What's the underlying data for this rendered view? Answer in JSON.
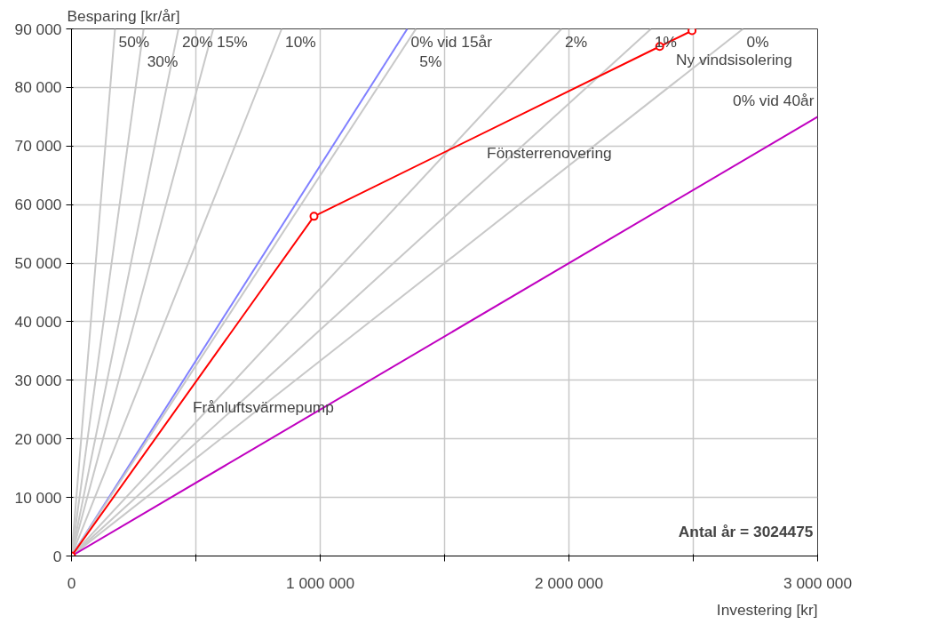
{
  "chart_data": {
    "type": "line",
    "xlabel": "Investering [kr]",
    "ylabel": "Besparing [kr/år]",
    "xlim": [
      0,
      3000000
    ],
    "ylim": [
      0,
      90000
    ],
    "xticks": [
      0,
      {
        "value": 500000,
        "label": null
      },
      {
        "value": 1000000,
        "label": "1 000 000"
      },
      {
        "value": 1500000,
        "label": null
      },
      {
        "value": 2000000,
        "label": "2 000 000"
      },
      {
        "value": 2500000,
        "label": null
      },
      {
        "value": 3000000,
        "label": "3 000 000"
      }
    ],
    "yticks": [
      0,
      {
        "value": 10000,
        "label": "10 000"
      },
      {
        "value": 20000,
        "label": "20 000"
      },
      {
        "value": 30000,
        "label": "30 000"
      },
      {
        "value": 40000,
        "label": "40 000"
      },
      {
        "value": 50000,
        "label": "50 000"
      },
      {
        "value": 60000,
        "label": "60 000"
      },
      {
        "value": 70000,
        "label": "70 000"
      },
      {
        "value": 80000,
        "label": "80 000"
      },
      {
        "value": 90000,
        "label": "90 000"
      }
    ],
    "grid": true,
    "series": [
      {
        "name": "50%",
        "color": "#c8c8c8",
        "x": [
          0,
          175000
        ],
        "values": [
          0,
          90000
        ]
      },
      {
        "name": "30%",
        "color": "#c8c8c8",
        "x": [
          0,
          290000
        ],
        "values": [
          0,
          90000
        ]
      },
      {
        "name": "20%",
        "color": "#c8c8c8",
        "x": [
          0,
          430000
        ],
        "values": [
          0,
          90000
        ]
      },
      {
        "name": "15%",
        "color": "#c8c8c8",
        "x": [
          0,
          570000
        ],
        "values": [
          0,
          90000
        ]
      },
      {
        "name": "10%",
        "color": "#c8c8c8",
        "x": [
          0,
          845000
        ],
        "values": [
          0,
          90000
        ]
      },
      {
        "name": "0% vid 15år",
        "color": "#8080ff",
        "x": [
          0,
          1350000
        ],
        "values": [
          0,
          90000
        ]
      },
      {
        "name": "5%",
        "color": "#c8c8c8",
        "x": [
          0,
          1385000
        ],
        "values": [
          0,
          90000
        ]
      },
      {
        "name": "2%",
        "color": "#c8c8c8",
        "x": [
          0,
          1970000
        ],
        "values": [
          0,
          90000
        ]
      },
      {
        "name": "1%",
        "color": "#c8c8c8",
        "x": [
          0,
          2330000
        ],
        "values": [
          0,
          90000
        ]
      },
      {
        "name": "0%",
        "color": "#c8c8c8",
        "x": [
          0,
          2700000
        ],
        "values": [
          0,
          90000
        ]
      },
      {
        "name": "0% vid 40år",
        "color": "#c000c0",
        "x": [
          0,
          3000000
        ],
        "values": [
          0,
          75000
        ]
      },
      {
        "color": "#ff0000",
        "marker": "circle",
        "x": [
          0,
          975000,
          2365000,
          2495000
        ],
        "values": [
          0,
          58000,
          87000,
          89700
        ]
      }
    ],
    "annotations": [
      {
        "text": "Frånluftsvärmepump",
        "x": 487500,
        "y": 29000
      },
      {
        "text": "Fönsterrenovering",
        "x": 1670000,
        "y": 72500
      },
      {
        "text": "Ny vindsisolering",
        "x": 2430000,
        "y": 88350
      },
      "Antal år = 3024475"
    ]
  }
}
